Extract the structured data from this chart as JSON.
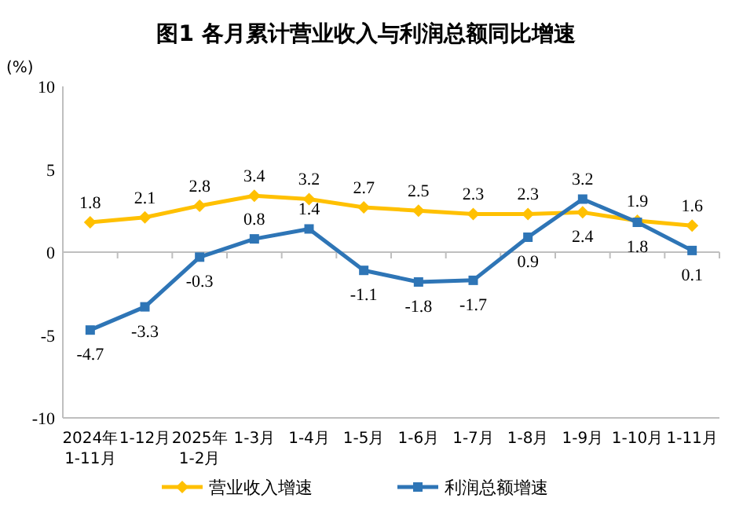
{
  "chart_data": {
    "type": "line",
    "title": "图1  各月累计营业收入与利润总额同比增速",
    "ylabel": "(%)",
    "categories": [
      "2024年\n1-11月",
      "1-12月",
      "2025年\n1-2月",
      "1-3月",
      "1-4月",
      "1-5月",
      "1-6月",
      "1-7月",
      "1-8月",
      "1-9月",
      "1-10月",
      "1-11月"
    ],
    "series": [
      {
        "name": "营业收入增速",
        "color": "#ffc000",
        "marker": "diamond",
        "values": [
          1.8,
          2.1,
          2.8,
          3.4,
          3.2,
          2.7,
          2.5,
          2.3,
          2.3,
          2.4,
          1.9,
          1.6
        ]
      },
      {
        "name": "利润总额增速",
        "color": "#2e75b6",
        "marker": "square",
        "values": [
          -4.7,
          -3.3,
          -0.3,
          0.8,
          1.4,
          -1.1,
          -1.8,
          -1.7,
          0.9,
          3.2,
          1.8,
          0.1
        ]
      }
    ],
    "ylim": [
      -10,
      10
    ],
    "yticks": [
      -10,
      -5,
      0,
      5,
      10
    ],
    "legend": "bottom",
    "data_labels": true
  }
}
